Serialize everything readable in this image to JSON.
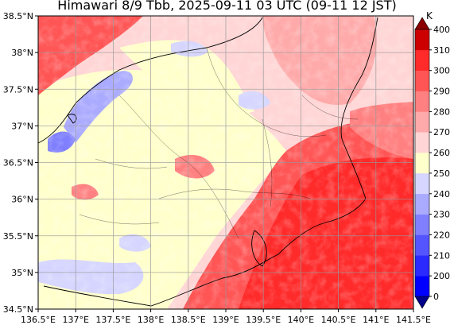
{
  "title": "Himawari 8/9 Tbb, 2025-09-11 03 UTC (09-11 12 JST)",
  "map": {
    "lat_ticks": [
      "38.5°N",
      "38°N",
      "37.5°N",
      "37°N",
      "36.5°N",
      "36°N",
      "35.5°N",
      "35°N",
      "34.5°N"
    ],
    "lon_ticks": [
      "136.5°E",
      "137°E",
      "137.5°E",
      "138°E",
      "138.5°E",
      "139°E",
      "139.5°E",
      "140°E",
      "140.5°E",
      "141°E",
      "141.5°E"
    ],
    "extent": {
      "lon_min": 136.5,
      "lon_max": 141.5,
      "lat_min": 34.5,
      "lat_max": 38.5
    }
  },
  "colorbar": {
    "unit": "K",
    "levels": [
      "0",
      "200",
      "210",
      "220",
      "230",
      "240",
      "250",
      "260",
      "270",
      "280",
      "290",
      "300",
      "310",
      "400"
    ],
    "colors": [
      "#00008b",
      "#0000ff",
      "#2a2aff",
      "#5555ff",
      "#8080ff",
      "#aaaaff",
      "#d5d5ff",
      "#ffffcc",
      "#ffd5d5",
      "#ffaaaa",
      "#ff8080",
      "#ff5555",
      "#ff2a2a",
      "#cc0000",
      "#8b0000"
    ]
  }
}
